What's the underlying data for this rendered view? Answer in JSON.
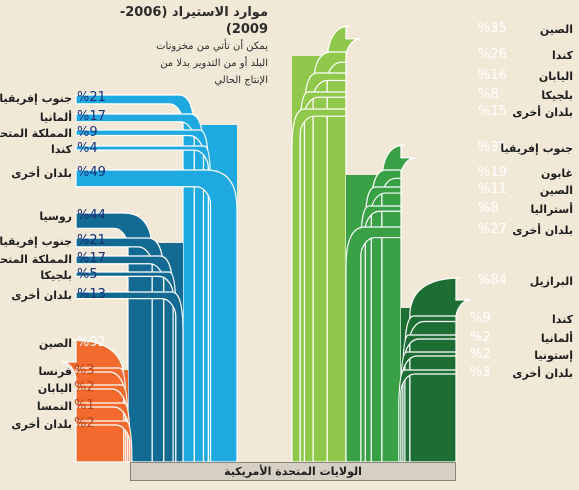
{
  "chart_data": {
    "type": "flow",
    "title": "موارد الاستيراد (2006-2009)",
    "subtitle": "يمكن أن تأتي من مخزونات\nالبلد أو من التدوير بدلا من\nالإنتاج الحالي",
    "destination": "الولايات المتحدة الأمريكية",
    "groups": [
      {
        "side": "left",
        "color": "#1fa9e1",
        "items": [
          {
            "country": "جنوب إفريقيا",
            "percent": "%21"
          },
          {
            "country": "ألمانيا",
            "percent": "%17"
          },
          {
            "country": "المملكة المتحدة",
            "percent": "%9"
          },
          {
            "country": "كندا",
            "percent": "%4"
          },
          {
            "country": "بلدان أخرى",
            "percent": "%49"
          }
        ]
      },
      {
        "side": "left",
        "color": "#136b94",
        "items": [
          {
            "country": "روسيا",
            "percent": "%44"
          },
          {
            "country": "جنوب إفريقيا",
            "percent": "%21"
          },
          {
            "country": "المملكة المتحدة",
            "percent": "%17"
          },
          {
            "country": "بلجيكا",
            "percent": "%5"
          },
          {
            "country": "بلدان أخرى",
            "percent": "%13"
          }
        ]
      },
      {
        "side": "left",
        "color": "#f26a2e",
        "items": [
          {
            "country": "الصين",
            "percent": "%92"
          },
          {
            "country": "فرنسا",
            "percent": "%3"
          },
          {
            "country": "اليابان",
            "percent": "%2"
          },
          {
            "country": "النمسا",
            "percent": "%1"
          },
          {
            "country": "بلدان أخرى",
            "percent": "%2"
          }
        ]
      },
      {
        "side": "right",
        "color": "#8fc84a",
        "items": [
          {
            "country": "الصين",
            "percent": "%35"
          },
          {
            "country": "كندا",
            "percent": "%26"
          },
          {
            "country": "اليابان",
            "percent": "%16"
          },
          {
            "country": "بلجيكا",
            "percent": "%8"
          },
          {
            "country": "بلدان أخرى",
            "percent": "%15"
          }
        ]
      },
      {
        "side": "right",
        "color": "#3aa046",
        "items": [
          {
            "country": "جنوب إفريقيا",
            "percent": "%35"
          },
          {
            "country": "غابون",
            "percent": "%19"
          },
          {
            "country": "الصين",
            "percent": "%11"
          },
          {
            "country": "أستراليا",
            "percent": "%8"
          },
          {
            "country": "بلدان أخرى",
            "percent": "%27"
          }
        ]
      },
      {
        "side": "right",
        "color": "#1d6e32",
        "items": [
          {
            "country": "البرازيل",
            "percent": "%84"
          },
          {
            "country": "كندا",
            "percent": "%9"
          },
          {
            "country": "ألمانيا",
            "percent": "%2"
          },
          {
            "country": "إستونيا",
            "percent": "%2"
          },
          {
            "country": "بلدان أخرى",
            "percent": "%3"
          }
        ]
      }
    ]
  }
}
